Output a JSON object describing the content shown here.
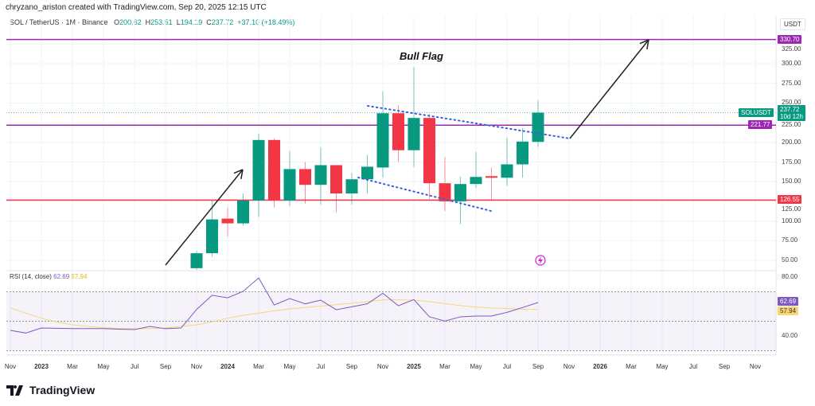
{
  "credit": "chryzano_ariston created with TradingView.com, Sep 20, 2025 12:15 UTC",
  "symbol": {
    "title": "SOL / TetherUS · 1M · Binance",
    "o_label": "O",
    "o": "200.62",
    "h_label": "H",
    "h": "253.51",
    "l_label": "L",
    "l": "194.19",
    "c_label": "C",
    "c": "237.72",
    "change": "+37.10 (+18.49%)"
  },
  "currency": "USDT",
  "price_axis": [
    "325.00",
    "300.00",
    "275.00",
    "250.00",
    "225.00",
    "200.00",
    "175.00",
    "150.00",
    "125.00",
    "100.00",
    "75.00",
    "50.00"
  ],
  "levels": [
    {
      "value": 330.7,
      "label": "330.70",
      "color": "#9c27b0"
    },
    {
      "value": 221.77,
      "label": "221.77",
      "color": "#9c27b0"
    },
    {
      "value": 126.55,
      "label": "126.55",
      "color": "#f23645"
    }
  ],
  "last_price": {
    "symbol": "SOLUSDT",
    "value": 237.72,
    "label": "237.72",
    "countdown": "10d 12h",
    "color": "#089981"
  },
  "annotation": "Bull Flag",
  "colors": {
    "up": "#089981",
    "down": "#f23645",
    "rsi": "#7e57c2",
    "rsi_ma": "#f7d774",
    "trend": "#3d5fd9"
  },
  "chart_data": {
    "type": "candlestick",
    "months": [
      "Nov 2023",
      "Dec 2023",
      "Jan 2024",
      "Feb 2024",
      "Mar 2024",
      "Apr 2024",
      "May 2024",
      "Jun 2024",
      "Jul 2024",
      "Aug 2024",
      "Sep 2024",
      "Oct 2024",
      "Nov 2024",
      "Dec 2024",
      "Jan 2025",
      "Feb 2025",
      "Mar 2025",
      "Apr 2025",
      "May 2025",
      "Jun 2025",
      "Jul 2025",
      "Aug 2025",
      "Sep 2025"
    ],
    "ohlc": [
      [
        40,
        62,
        38,
        59
      ],
      [
        59,
        126,
        55,
        102
      ],
      [
        103,
        117,
        80,
        97
      ],
      [
        97,
        135,
        94,
        126
      ],
      [
        126,
        211,
        105,
        203
      ],
      [
        203,
        205,
        117,
        126
      ],
      [
        126,
        189,
        119,
        166
      ],
      [
        166,
        175,
        122,
        146
      ],
      [
        146,
        194,
        121,
        171
      ],
      [
        171,
        171,
        111,
        135
      ],
      [
        135,
        161,
        121,
        153
      ],
      [
        153,
        184,
        135,
        169
      ],
      [
        168,
        265,
        155,
        237
      ],
      [
        237,
        247,
        175,
        190
      ],
      [
        190,
        296,
        169,
        231
      ],
      [
        231,
        236,
        128,
        148
      ],
      [
        148,
        181,
        113,
        125
      ],
      [
        125,
        156,
        96,
        147
      ],
      [
        147,
        188,
        142,
        156
      ],
      [
        157,
        168,
        126,
        155
      ],
      [
        155,
        206,
        145,
        172
      ],
      [
        172,
        218,
        155,
        201
      ],
      [
        200.62,
        253.51,
        194.19,
        237.72
      ]
    ],
    "ylim": [
      30,
      345
    ],
    "rsi": {
      "label": "RSI (14, close)",
      "value": "62.69",
      "ma_value": "57.94",
      "axis": [
        "80.00",
        "40.00"
      ],
      "bands": [
        70,
        50,
        30
      ],
      "values": [
        43.8,
        42,
        45.4,
        45.2,
        45,
        45,
        45,
        44.6,
        44.3,
        46.5,
        44.9,
        45.4,
        58,
        67.6,
        65.9,
        70.3,
        79.4,
        61,
        65.4,
        61.8,
        64.3,
        57.8,
        59.8,
        61.8,
        69,
        60.5,
        64.7,
        53,
        50.1,
        53,
        53.5,
        53.5,
        56,
        59.3,
        62.69
      ],
      "ma": [
        59,
        55.5,
        52,
        49.5,
        47.6,
        46.5,
        45.6,
        45.2,
        45,
        44.9,
        45.5,
        46.5,
        47.5,
        49.5,
        52,
        54,
        55.5,
        57,
        58.3,
        59.3,
        60.3,
        61.3,
        62.2,
        63.3,
        64.4,
        64.6,
        64.3,
        63.3,
        62,
        60.6,
        59.6,
        59,
        58.6,
        58.2,
        57.94
      ]
    },
    "x_axis": [
      "Nov",
      "2023",
      "Mar",
      "May",
      "Jul",
      "Sep",
      "Nov",
      "2024",
      "Mar",
      "May",
      "Jul",
      "Sep",
      "Nov",
      "2025",
      "Mar",
      "May",
      "Jul",
      "Sep",
      "Nov",
      "2026",
      "Mar",
      "May",
      "Jul",
      "Sep",
      "Nov"
    ]
  },
  "brand": "TradingView"
}
